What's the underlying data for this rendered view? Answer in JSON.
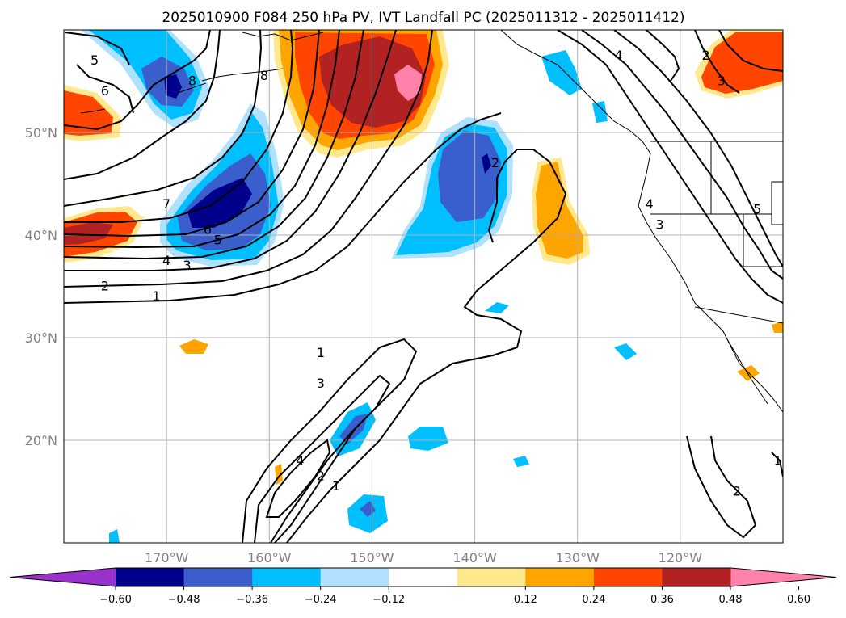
{
  "chart_data": {
    "type": "contour-map",
    "title": "2025010900 F084 250 hPa PV, IVT Landfall PC (2025011312 - 2025011412)",
    "lat_ticks": [
      "50°N",
      "40°N",
      "30°N",
      "20°N"
    ],
    "lon_ticks": [
      "170°W",
      "160°W",
      "150°W",
      "140°W",
      "130°W",
      "120°W"
    ],
    "lat_values": [
      50,
      40,
      30,
      20
    ],
    "lon_values": [
      -170,
      -160,
      -150,
      -140,
      -130,
      -120
    ],
    "lon_range": [
      -180,
      -110
    ],
    "lat_range": [
      10,
      60
    ],
    "grid": true,
    "colorbar": {
      "orientation": "horizontal",
      "extend": "both",
      "levels": [
        -0.72,
        -0.6,
        -0.48,
        -0.36,
        -0.24,
        -0.12,
        0.12,
        0.24,
        0.36,
        0.48,
        0.6,
        0.72
      ],
      "tick_labels": [
        "−0.60",
        "−0.48",
        "−0.36",
        "−0.24",
        "−0.12",
        "0.12",
        "0.24",
        "0.36",
        "0.48",
        "0.60"
      ],
      "colors": [
        "#9932cc",
        "#00008b",
        "#3a5fcd",
        "#00bfff",
        "#b0e2ff",
        "#ffffff",
        "#ffe98c",
        "#ffa500",
        "#ff4500",
        "#b22222",
        "#ff82ab"
      ]
    },
    "contour_labels": [
      {
        "text": "5",
        "lon": -177.0,
        "lat": 57.0
      },
      {
        "text": "6",
        "lon": -176.0,
        "lat": 54.0
      },
      {
        "text": "8",
        "lon": -167.5,
        "lat": 55.0
      },
      {
        "text": "8",
        "lon": -160.5,
        "lat": 55.5
      },
      {
        "text": "7",
        "lon": -170.0,
        "lat": 43.0
      },
      {
        "text": "6",
        "lon": -166.0,
        "lat": 40.5
      },
      {
        "text": "5",
        "lon": -165.0,
        "lat": 39.5
      },
      {
        "text": "4",
        "lon": -170.0,
        "lat": 37.5
      },
      {
        "text": "3",
        "lon": -168.0,
        "lat": 37.0
      },
      {
        "text": "2",
        "lon": -176.0,
        "lat": 35.0
      },
      {
        "text": "1",
        "lon": -171.0,
        "lat": 34.0
      },
      {
        "text": "2",
        "lon": -138.0,
        "lat": 47.0
      },
      {
        "text": "4",
        "lon": -126.0,
        "lat": 57.5
      },
      {
        "text": "2",
        "lon": -117.5,
        "lat": 57.5
      },
      {
        "text": "3",
        "lon": -116.0,
        "lat": 55.0
      },
      {
        "text": "4",
        "lon": -123.0,
        "lat": 43.0
      },
      {
        "text": "3",
        "lon": -122.0,
        "lat": 41.0
      },
      {
        "text": "5",
        "lon": -112.5,
        "lat": 42.5
      },
      {
        "text": "1",
        "lon": -155.0,
        "lat": 28.5
      },
      {
        "text": "3",
        "lon": -155.0,
        "lat": 25.5
      },
      {
        "text": "4",
        "lon": -157.0,
        "lat": 18.0
      },
      {
        "text": "2",
        "lon": -155.0,
        "lat": 16.5
      },
      {
        "text": "1",
        "lon": -153.5,
        "lat": 15.5
      },
      {
        "text": "1",
        "lon": -110.5,
        "lat": 18.0
      },
      {
        "text": "2",
        "lon": -114.5,
        "lat": 15.0
      }
    ]
  }
}
